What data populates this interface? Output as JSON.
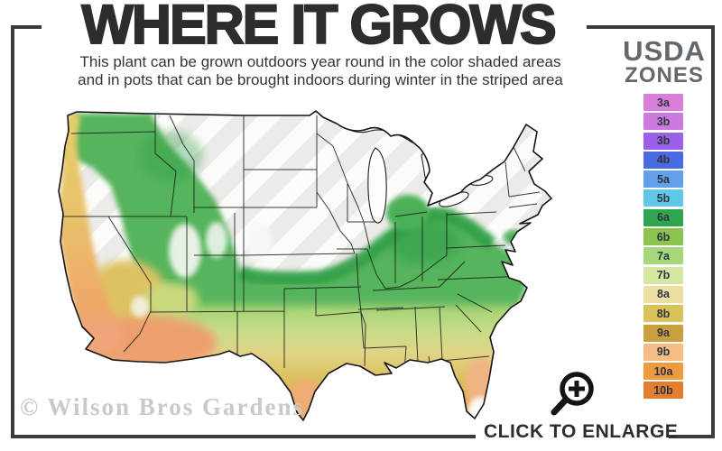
{
  "header": {
    "title": "WHERE IT GROWS",
    "subtitle_line1": "This plant can be grown outdoors year round in the color shaded areas",
    "subtitle_line2": "and in pots that can be brought indoors during winter in the striped area"
  },
  "legend": {
    "title_line1": "USDA",
    "title_line2": "ZONES",
    "zones": [
      {
        "label": "3a",
        "color": "#d97fd9"
      },
      {
        "label": "3b",
        "color": "#cc7ae0"
      },
      {
        "label": "3b",
        "color": "#9b5fe8"
      },
      {
        "label": "4b",
        "color": "#4a6adf"
      },
      {
        "label": "5a",
        "color": "#63a0ea"
      },
      {
        "label": "5b",
        "color": "#5fc8e8"
      },
      {
        "label": "6a",
        "color": "#2fa54d"
      },
      {
        "label": "6b",
        "color": "#8ac44e"
      },
      {
        "label": "7a",
        "color": "#a6d778"
      },
      {
        "label": "7b",
        "color": "#d4e8a4"
      },
      {
        "label": "8a",
        "color": "#ebdfa2"
      },
      {
        "label": "8b",
        "color": "#d9c257"
      },
      {
        "label": "9a",
        "color": "#caa03c"
      },
      {
        "label": "9b",
        "color": "#f3bd86"
      },
      {
        "label": "10a",
        "color": "#ee9a40"
      },
      {
        "label": "10b",
        "color": "#e27e2d"
      }
    ]
  },
  "map_colors": {
    "striped_area": "#ebebe8",
    "unshaded": "#fbfbf9",
    "outline": "#1a1a1a",
    "core_green": "#2f9e44",
    "south_orange": "#f0b489"
  },
  "footer": {
    "watermark": "© Wilson Bros Gardens",
    "enlarge_label": "CLICK TO ENLARGE",
    "magnifier_icon": "magnifier-plus"
  },
  "frame_color": "#3b3b3b"
}
